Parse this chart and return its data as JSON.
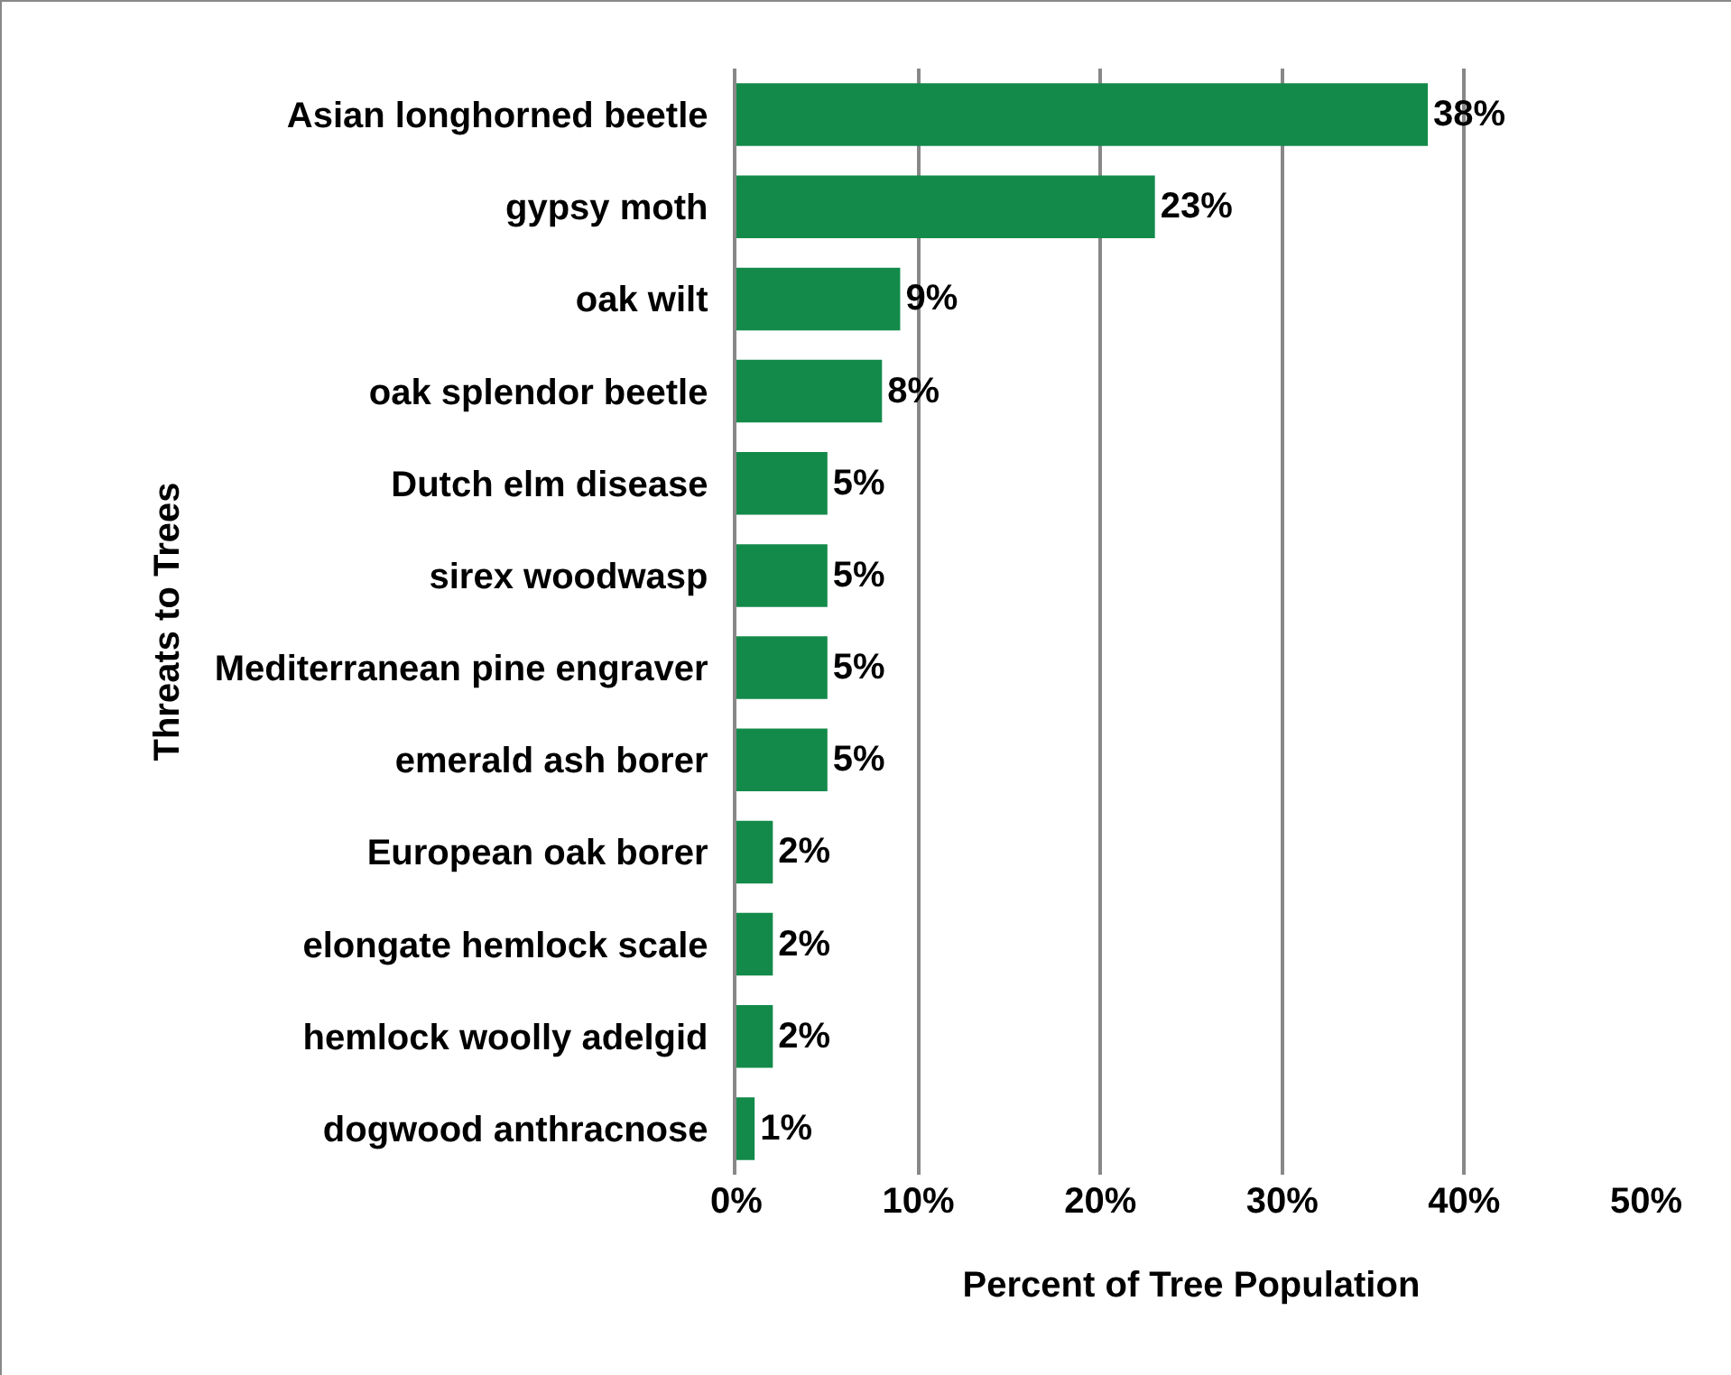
{
  "chart_data": {
    "type": "bar",
    "orientation": "horizontal",
    "xlabel": "Percent of Tree Population",
    "ylabel": "Threats to Trees",
    "categories": [
      "Asian longhorned beetle",
      "gypsy moth",
      "oak wilt",
      "oak splendor beetle",
      "Dutch elm disease",
      "sirex woodwasp",
      "Mediterranean pine engraver",
      "emerald ash borer",
      "European oak borer",
      "elongate hemlock scale",
      "hemlock woolly adelgid",
      "dogwood anthracnose"
    ],
    "values": [
      38,
      23,
      9,
      8,
      5,
      5,
      5,
      5,
      2,
      2,
      2,
      1
    ],
    "color": "#138a4a",
    "value_labels": [
      "38%",
      "23%",
      "9%",
      "8%",
      "5%",
      "5%",
      "5%",
      "5%",
      "2%",
      "2%",
      "2%",
      "1%"
    ],
    "xlim": [
      0,
      50
    ],
    "xticks": [
      {
        "value": 0,
        "label": "0%"
      },
      {
        "value": 10,
        "label": "10%"
      },
      {
        "value": 20,
        "label": "20%"
      },
      {
        "value": 30,
        "label": "30%"
      },
      {
        "value": 40,
        "label": "40%"
      },
      {
        "value": 50,
        "label": "50%"
      }
    ],
    "grid": "x"
  }
}
